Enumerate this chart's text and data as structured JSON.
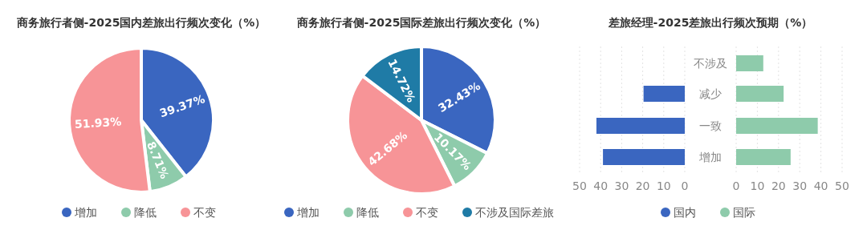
{
  "chart_data": [
    {
      "type": "pie",
      "title": "商务旅行者侧-2025国内差旅出行频次变化（%）",
      "categories": [
        "增加",
        "降低",
        "不变"
      ],
      "values": [
        39.37,
        8.71,
        51.93
      ],
      "value_labels": [
        "39.37%",
        "8.71%",
        "51.93%"
      ],
      "colors": [
        "#3a66c0",
        "#8ecbab",
        "#f79497"
      ],
      "legend": "bottom"
    },
    {
      "type": "pie",
      "title": "商务旅行者侧-2025国际差旅出行频次变化（%）",
      "categories": [
        "增加",
        "降低",
        "不变",
        "不涉及国际差旅"
      ],
      "values": [
        32.43,
        10.17,
        42.68,
        14.72
      ],
      "value_labels": [
        "32.43%",
        "10.17%",
        "42.68%",
        "14.72%"
      ],
      "colors": [
        "#3a66c0",
        "#8ecbab",
        "#f79497",
        "#1f7ba6"
      ],
      "legend": "bottom"
    },
    {
      "type": "bar",
      "orientation": "horizontal",
      "title": "差旅经理-2025差旅出行频次预期（%）",
      "categories": [
        "不涉及",
        "减少",
        "一致",
        "增加"
      ],
      "series": [
        {
          "name": "国内",
          "color": "#3a66c0",
          "values": [
            null,
            19.6,
            42.0,
            38.9
          ]
        }
      ],
      "xlim": [
        50,
        0
      ],
      "xticks": [
        50,
        40,
        30,
        20,
        10,
        0
      ],
      "grid": "x",
      "legend": "bottom"
    },
    {
      "type": "bar",
      "orientation": "horizontal",
      "categories": [
        null,
        null,
        null,
        null
      ],
      "series": [
        {
          "name": "国际",
          "color": "#8ecbab",
          "values": [
            12.8,
            22.4,
            38.5,
            25.7
          ]
        }
      ],
      "xlim": [
        0,
        50
      ],
      "xticks": [
        0,
        10,
        20,
        30,
        40,
        50
      ],
      "grid": "x",
      "legend": "bottom"
    }
  ]
}
